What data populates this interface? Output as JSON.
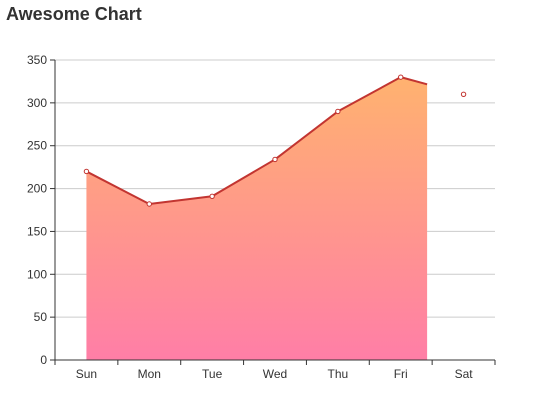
{
  "chart_data": {
    "type": "area",
    "title": "Awesome Chart",
    "categories": [
      "Sun",
      "Mon",
      "Tue",
      "Wed",
      "Thu",
      "Fri",
      "Sat"
    ],
    "series": [
      {
        "values": [
          220,
          182,
          191,
          234,
          290,
          330,
          310
        ]
      }
    ],
    "yticks": [
      0,
      50,
      100,
      150,
      200,
      250,
      300,
      350
    ],
    "ylim": [
      0,
      350
    ],
    "xlabel": "",
    "ylabel": "",
    "grid": true,
    "legend": "none"
  },
  "colors": {
    "line": "#c23531",
    "fill_top": "#ffb26f",
    "fill_bottom": "#ff7ea7",
    "grid": "#cccccc",
    "axis": "#333333"
  }
}
